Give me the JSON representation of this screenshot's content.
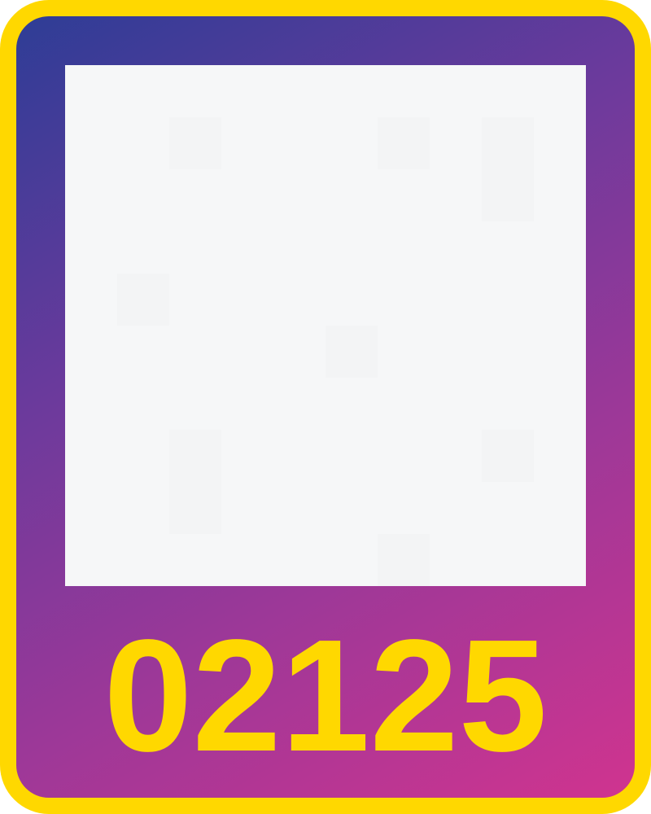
{
  "card": {
    "code": "02125"
  },
  "colors": {
    "border": "#ffd800",
    "gradient_start": "#2e3d96",
    "gradient_end": "#d0348f",
    "image_area": "#f6f7f8",
    "number": "#ffd800"
  }
}
